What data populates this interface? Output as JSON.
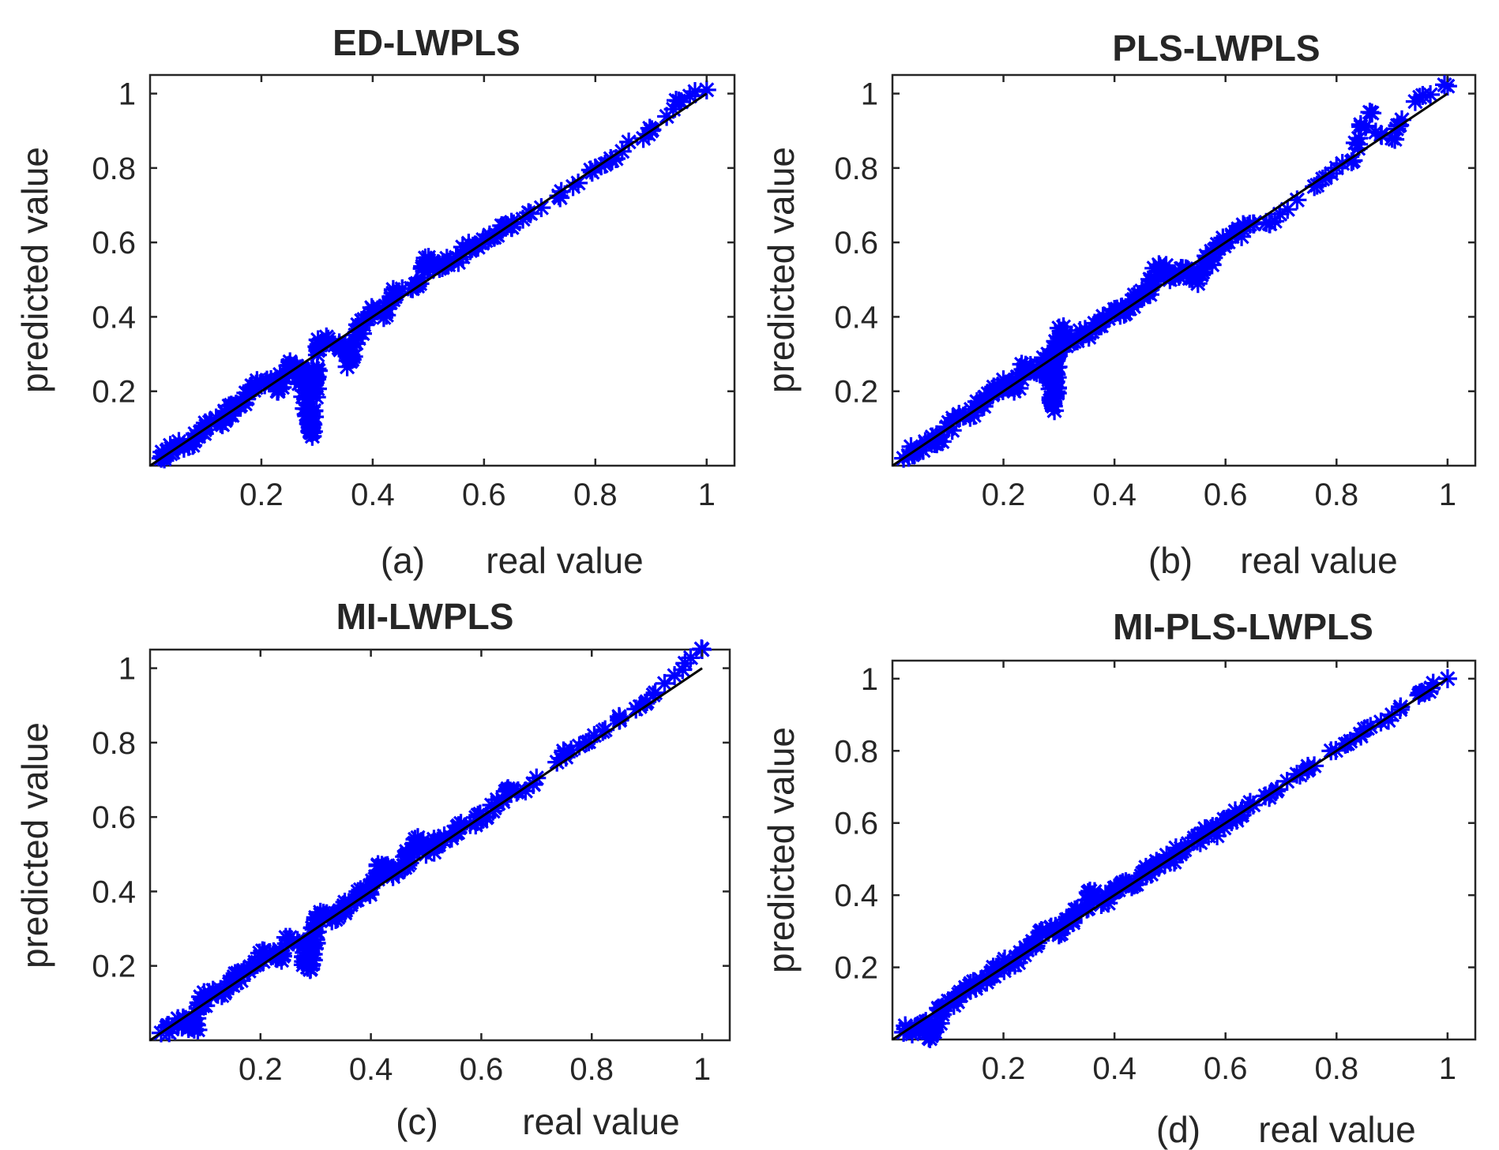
{
  "chart_data": [
    {
      "type": "scatter",
      "title": "ED-LWPLS",
      "panel_label": "(a)",
      "xlabel": "real value",
      "ylabel": "predicted value",
      "xlim": [
        0,
        1.05
      ],
      "ylim": [
        0,
        1.05
      ],
      "xticks": [
        0.2,
        0.4,
        0.6,
        0.8,
        1
      ],
      "xtick_labels": [
        "0.2",
        "0.4",
        "0.6",
        "0.8",
        "1"
      ],
      "yticks": [
        0.2,
        0.4,
        0.6,
        0.8,
        1
      ],
      "ytick_labels": [
        "0.2",
        "0.4",
        "0.6",
        "0.8",
        "1"
      ],
      "marker": "asterisk",
      "marker_color": "#0000ff",
      "reference_line": [
        [
          0,
          0
        ],
        [
          1,
          1
        ]
      ],
      "points": [
        [
          0.02,
          0.02
        ],
        [
          0.03,
          0.04
        ],
        [
          0.05,
          0.05
        ],
        [
          0.07,
          0.06
        ],
        [
          0.09,
          0.09
        ],
        [
          0.11,
          0.12
        ],
        [
          0.13,
          0.11
        ],
        [
          0.15,
          0.16
        ],
        [
          0.17,
          0.18
        ],
        [
          0.19,
          0.21
        ],
        [
          0.21,
          0.23
        ],
        [
          0.23,
          0.2
        ],
        [
          0.25,
          0.27
        ],
        [
          0.27,
          0.26
        ],
        [
          0.28,
          0.18
        ],
        [
          0.29,
          0.09
        ],
        [
          0.3,
          0.32
        ],
        [
          0.32,
          0.34
        ],
        [
          0.34,
          0.33
        ],
        [
          0.36,
          0.28
        ],
        [
          0.38,
          0.39
        ],
        [
          0.4,
          0.42
        ],
        [
          0.42,
          0.41
        ],
        [
          0.44,
          0.46
        ],
        [
          0.48,
          0.49
        ],
        [
          0.5,
          0.55
        ],
        [
          0.52,
          0.53
        ],
        [
          0.55,
          0.56
        ],
        [
          0.58,
          0.59
        ],
        [
          0.61,
          0.62
        ],
        [
          0.65,
          0.64
        ],
        [
          0.68,
          0.68
        ],
        [
          0.76,
          0.75
        ],
        [
          0.8,
          0.8
        ],
        [
          0.83,
          0.82
        ],
        [
          0.86,
          0.87
        ],
        [
          0.9,
          0.9
        ],
        [
          0.95,
          0.98
        ],
        [
          1.0,
          1.01
        ]
      ]
    },
    {
      "type": "scatter",
      "title": "PLS-LWPLS",
      "panel_label": "(b)",
      "xlabel": "real value",
      "ylabel": "predicted value",
      "xlim": [
        0,
        1.05
      ],
      "ylim": [
        0,
        1.05
      ],
      "xticks": [
        0.2,
        0.4,
        0.6,
        0.8,
        1
      ],
      "xtick_labels": [
        "0.2",
        "0.4",
        "0.6",
        "0.8",
        "1"
      ],
      "yticks": [
        0.2,
        0.4,
        0.6,
        0.8,
        1
      ],
      "ytick_labels": [
        "0.2",
        "0.4",
        "0.6",
        "0.8",
        "1"
      ],
      "marker": "asterisk",
      "marker_color": "#0000ff",
      "reference_line": [
        [
          0,
          0
        ],
        [
          1,
          1
        ]
      ],
      "points": [
        [
          0.02,
          0.02
        ],
        [
          0.04,
          0.04
        ],
        [
          0.06,
          0.06
        ],
        [
          0.08,
          0.07
        ],
        [
          0.1,
          0.1
        ],
        [
          0.12,
          0.13
        ],
        [
          0.14,
          0.13
        ],
        [
          0.16,
          0.17
        ],
        [
          0.18,
          0.19
        ],
        [
          0.2,
          0.22
        ],
        [
          0.22,
          0.21
        ],
        [
          0.24,
          0.27
        ],
        [
          0.26,
          0.25
        ],
        [
          0.28,
          0.3
        ],
        [
          0.29,
          0.16
        ],
        [
          0.3,
          0.37
        ],
        [
          0.32,
          0.33
        ],
        [
          0.34,
          0.35
        ],
        [
          0.36,
          0.36
        ],
        [
          0.38,
          0.39
        ],
        [
          0.4,
          0.42
        ],
        [
          0.42,
          0.41
        ],
        [
          0.44,
          0.45
        ],
        [
          0.46,
          0.47
        ],
        [
          0.48,
          0.54
        ],
        [
          0.5,
          0.5
        ],
        [
          0.52,
          0.53
        ],
        [
          0.55,
          0.5
        ],
        [
          0.58,
          0.58
        ],
        [
          0.6,
          0.6
        ],
        [
          0.65,
          0.65
        ],
        [
          0.68,
          0.65
        ],
        [
          0.76,
          0.75
        ],
        [
          0.8,
          0.8
        ],
        [
          0.83,
          0.82
        ],
        [
          0.84,
          0.88
        ],
        [
          0.86,
          0.95
        ],
        [
          0.88,
          0.89
        ],
        [
          0.9,
          0.88
        ],
        [
          0.95,
          0.99
        ],
        [
          1.0,
          1.02
        ]
      ]
    },
    {
      "type": "scatter",
      "title": "MI-LWPLS",
      "panel_label": "(c)",
      "xlabel": "real value",
      "ylabel": "predicted value",
      "xlim": [
        0,
        1.05
      ],
      "ylim": [
        0,
        1.05
      ],
      "xticks": [
        0.2,
        0.4,
        0.6,
        0.8,
        1
      ],
      "xtick_labels": [
        "0.2",
        "0.4",
        "0.6",
        "0.8",
        "1"
      ],
      "yticks": [
        0.2,
        0.4,
        0.6,
        0.8,
        1
      ],
      "ytick_labels": [
        "0.2",
        "0.4",
        "0.6",
        "0.8",
        "1"
      ],
      "marker": "asterisk",
      "marker_color": "#0000ff",
      "reference_line": [
        [
          0,
          0
        ],
        [
          1,
          1
        ]
      ],
      "points": [
        [
          0.02,
          0.02
        ],
        [
          0.04,
          0.03
        ],
        [
          0.06,
          0.06
        ],
        [
          0.08,
          0.03
        ],
        [
          0.09,
          0.1
        ],
        [
          0.11,
          0.12
        ],
        [
          0.13,
          0.12
        ],
        [
          0.15,
          0.16
        ],
        [
          0.17,
          0.18
        ],
        [
          0.19,
          0.21
        ],
        [
          0.21,
          0.23
        ],
        [
          0.23,
          0.22
        ],
        [
          0.25,
          0.27
        ],
        [
          0.27,
          0.26
        ],
        [
          0.29,
          0.19
        ],
        [
          0.3,
          0.33
        ],
        [
          0.32,
          0.34
        ],
        [
          0.34,
          0.33
        ],
        [
          0.36,
          0.37
        ],
        [
          0.38,
          0.39
        ],
        [
          0.4,
          0.41
        ],
        [
          0.42,
          0.47
        ],
        [
          0.44,
          0.44
        ],
        [
          0.46,
          0.47
        ],
        [
          0.48,
          0.54
        ],
        [
          0.5,
          0.5
        ],
        [
          0.52,
          0.53
        ],
        [
          0.55,
          0.56
        ],
        [
          0.58,
          0.58
        ],
        [
          0.61,
          0.6
        ],
        [
          0.65,
          0.67
        ],
        [
          0.68,
          0.67
        ],
        [
          0.75,
          0.77
        ],
        [
          0.79,
          0.8
        ],
        [
          0.82,
          0.83
        ],
        [
          0.85,
          0.86
        ],
        [
          0.88,
          0.89
        ],
        [
          0.9,
          0.91
        ],
        [
          0.95,
          0.98
        ],
        [
          1.0,
          1.05
        ]
      ]
    },
    {
      "type": "scatter",
      "title": "MI-PLS-LWPLS",
      "panel_label": "(d)",
      "xlabel": "real value",
      "ylabel": "predicted value",
      "xlim": [
        0,
        1.05
      ],
      "ylim": [
        0,
        1.05
      ],
      "xticks": [
        0.2,
        0.4,
        0.6,
        0.8,
        1
      ],
      "xtick_labels": [
        "0.2",
        "0.4",
        "0.6",
        "0.8",
        "1"
      ],
      "yticks": [
        0.2,
        0.4,
        0.6,
        0.8,
        1
      ],
      "ytick_labels": [
        "0.2",
        "0.4",
        "0.6",
        "0.8",
        "1"
      ],
      "marker": "asterisk",
      "marker_color": "#0000ff",
      "reference_line": [
        [
          0,
          0
        ],
        [
          1,
          1
        ]
      ],
      "points": [
        [
          0.02,
          0.02
        ],
        [
          0.04,
          0.03
        ],
        [
          0.06,
          0.05
        ],
        [
          0.07,
          0.01
        ],
        [
          0.09,
          0.09
        ],
        [
          0.11,
          0.11
        ],
        [
          0.13,
          0.13
        ],
        [
          0.15,
          0.15
        ],
        [
          0.17,
          0.17
        ],
        [
          0.19,
          0.2
        ],
        [
          0.21,
          0.21
        ],
        [
          0.23,
          0.23
        ],
        [
          0.25,
          0.26
        ],
        [
          0.27,
          0.3
        ],
        [
          0.29,
          0.3
        ],
        [
          0.3,
          0.29
        ],
        [
          0.32,
          0.33
        ],
        [
          0.34,
          0.36
        ],
        [
          0.36,
          0.4
        ],
        [
          0.38,
          0.38
        ],
        [
          0.4,
          0.41
        ],
        [
          0.42,
          0.43
        ],
        [
          0.44,
          0.43
        ],
        [
          0.46,
          0.47
        ],
        [
          0.48,
          0.49
        ],
        [
          0.5,
          0.5
        ],
        [
          0.52,
          0.53
        ],
        [
          0.55,
          0.56
        ],
        [
          0.58,
          0.58
        ],
        [
          0.61,
          0.61
        ],
        [
          0.65,
          0.65
        ],
        [
          0.68,
          0.68
        ],
        [
          0.75,
          0.75
        ],
        [
          0.79,
          0.8
        ],
        [
          0.82,
          0.82
        ],
        [
          0.85,
          0.86
        ],
        [
          0.88,
          0.88
        ],
        [
          0.9,
          0.9
        ],
        [
          0.95,
          0.96
        ],
        [
          1.0,
          1.0
        ]
      ]
    }
  ]
}
